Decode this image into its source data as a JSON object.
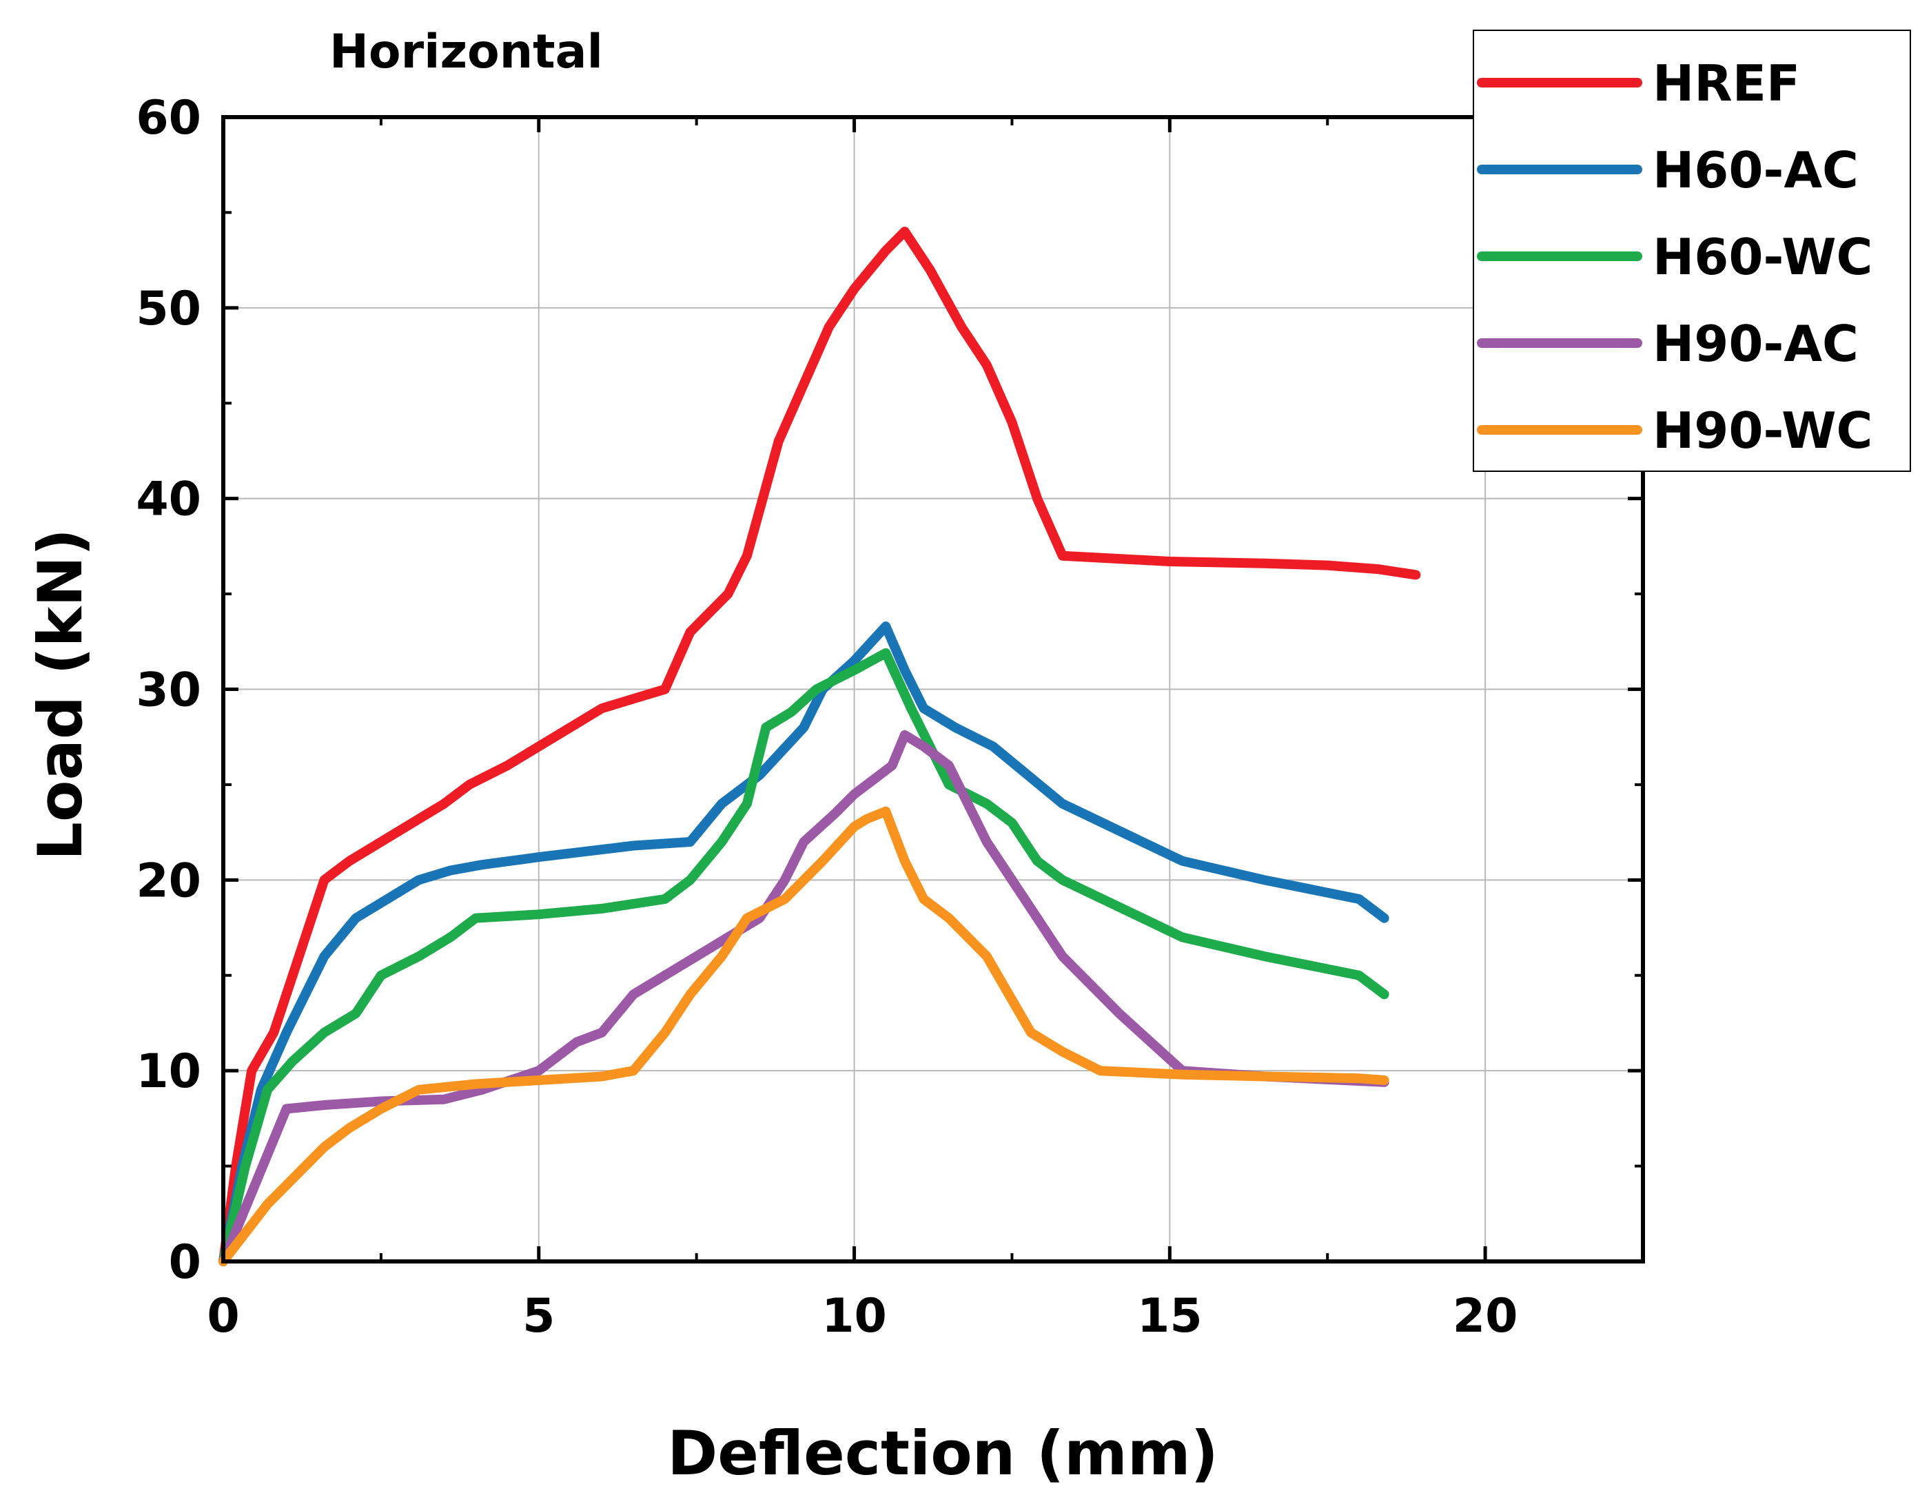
{
  "chart_data": {
    "type": "line",
    "title": "Horizontal",
    "xlabel": "Deflection (mm)",
    "ylabel": "Load (kN)",
    "xlim": [
      0,
      22.5
    ],
    "ylim": [
      0,
      60
    ],
    "xticks": [
      0,
      5,
      10,
      15,
      20
    ],
    "yticks": [
      0,
      10,
      20,
      30,
      40,
      50,
      60
    ],
    "grid": true,
    "legend_position": "top-right",
    "series": [
      {
        "name": "HREF",
        "color": "#ee1c24",
        "x": [
          0,
          0.2,
          0.45,
          0.8,
          1.1,
          1.3,
          1.6,
          2.0,
          2.5,
          3.0,
          3.5,
          3.9,
          4.5,
          5.0,
          5.5,
          6.0,
          6.5,
          7.0,
          7.4,
          8.0,
          8.3,
          8.8,
          9.2,
          9.6,
          10.0,
          10.5,
          10.8,
          11.2,
          11.7,
          12.1,
          12.5,
          12.9,
          13.3,
          15.0,
          16.5,
          17.5,
          18.3,
          18.9
        ],
        "y": [
          0,
          5,
          10,
          12,
          15,
          17,
          20,
          21,
          22,
          23,
          24,
          25,
          26,
          27,
          28,
          29,
          29.5,
          30,
          33,
          35,
          37,
          43,
          46,
          49,
          51,
          53,
          54,
          52,
          49,
          47,
          44,
          40,
          37,
          36.7,
          36.6,
          36.5,
          36.3,
          36
        ]
      },
      {
        "name": "H60-AC",
        "color": "#1a75b7",
        "x": [
          0,
          0.3,
          0.6,
          1.0,
          1.6,
          2.1,
          2.6,
          3.1,
          3.6,
          4.1,
          5.0,
          6.5,
          7.4,
          7.9,
          8.5,
          9.2,
          9.5,
          10.0,
          10.5,
          10.8,
          11.1,
          11.6,
          12.2,
          13.3,
          15.2,
          16.5,
          18.0,
          18.4
        ],
        "y": [
          0,
          5,
          9,
          12,
          16,
          18,
          19,
          20,
          20.5,
          20.8,
          21.2,
          21.8,
          22,
          24,
          25.5,
          28,
          30,
          31.5,
          33.3,
          31,
          29,
          28,
          27,
          24,
          21,
          20,
          19,
          18
        ]
      },
      {
        "name": "H60-WC",
        "color": "#1eab4b",
        "x": [
          0,
          0.35,
          0.7,
          1.1,
          1.6,
          2.1,
          2.5,
          3.1,
          3.6,
          4.0,
          5.0,
          6.0,
          7.0,
          7.4,
          7.9,
          8.3,
          8.6,
          9.0,
          9.4,
          10.0,
          10.5,
          10.9,
          11.5,
          12.1,
          12.5,
          12.9,
          13.3,
          15.2,
          16.5,
          18.0,
          18.4
        ],
        "y": [
          0,
          5,
          9,
          10.5,
          12,
          13,
          15,
          16,
          17,
          18,
          18.2,
          18.5,
          19,
          20,
          22,
          24,
          28,
          28.8,
          30,
          31,
          31.9,
          29,
          25,
          24,
          23,
          21,
          20,
          17,
          16,
          15,
          14
        ]
      },
      {
        "name": "H90-AC",
        "color": "#9b59a6",
        "x": [
          0,
          0.5,
          1.0,
          1.6,
          2.5,
          3.5,
          4.1,
          5.0,
          5.6,
          6.0,
          6.5,
          7.0,
          7.5,
          8.0,
          8.5,
          8.9,
          9.2,
          9.7,
          10.0,
          10.4,
          10.6,
          10.8,
          11.1,
          11.5,
          12.1,
          12.7,
          13.3,
          14.2,
          15.2,
          16.5,
          18.4
        ],
        "y": [
          0,
          4,
          8,
          8.2,
          8.4,
          8.5,
          9,
          10,
          11.5,
          12,
          14,
          15,
          16,
          17,
          18,
          20,
          22,
          23.5,
          24.5,
          25.5,
          26,
          27.6,
          27,
          26,
          22,
          19,
          16,
          13,
          10,
          9.7,
          9.4
        ]
      },
      {
        "name": "H90-WC",
        "color": "#f7931e",
        "x": [
          0,
          0.7,
          1.6,
          2.0,
          2.5,
          3.1,
          4.0,
          5.0,
          6.0,
          6.5,
          7.0,
          7.4,
          7.9,
          8.3,
          8.9,
          9.5,
          10.0,
          10.2,
          10.5,
          10.8,
          11.1,
          11.5,
          12.1,
          12.8,
          13.3,
          13.9,
          15.2,
          16.5,
          18.0,
          18.4
        ],
        "y": [
          0,
          3,
          6,
          7,
          8,
          9,
          9.3,
          9.5,
          9.7,
          10,
          12,
          14,
          16,
          18,
          19,
          21,
          22.8,
          23.2,
          23.6,
          21,
          19,
          18,
          16,
          12,
          11,
          10,
          9.8,
          9.7,
          9.6,
          9.5
        ]
      }
    ]
  }
}
